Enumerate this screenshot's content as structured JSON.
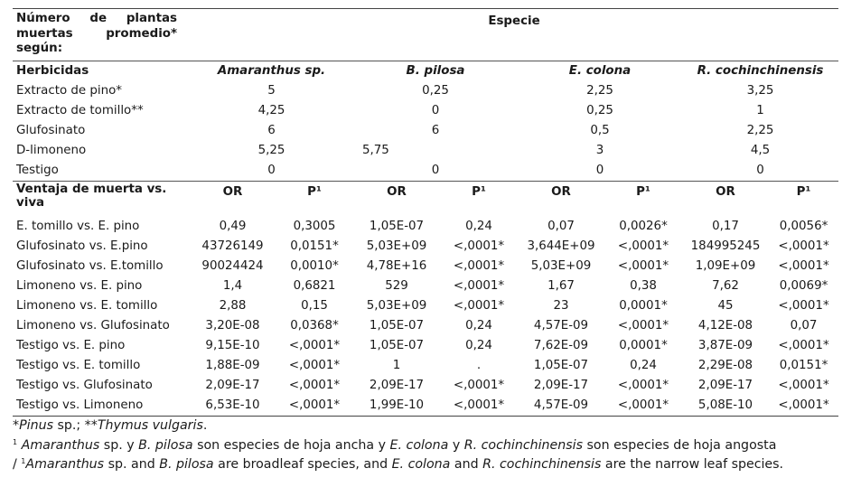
{
  "table": {
    "corner_header": "Número de plantas muertas promedio* según:",
    "species_header": "Especie",
    "herbicides_label": "Herbicidas",
    "species": [
      "Amaranthus sp.",
      "B. pilosa",
      "E. colona",
      "R. cochinchinensis"
    ],
    "herbicide_rows": [
      {
        "label": "Extracto de pino*",
        "values": [
          "5",
          "0,25",
          "2,25",
          "3,25"
        ]
      },
      {
        "label": "Extracto de tomillo**",
        "values": [
          "4,25",
          "0",
          "0,25",
          "1"
        ]
      },
      {
        "label": "Glufosinato",
        "values": [
          "6",
          "6",
          "0,5",
          "2,25"
        ]
      },
      {
        "label": "D-limoneno",
        "values": [
          "5,25",
          "5,75",
          "3",
          "4,5"
        ]
      },
      {
        "label": "Testigo",
        "values": [
          "0",
          "0",
          "0",
          "0"
        ]
      }
    ],
    "advantage_label": "Ventaja de muerta vs. viva",
    "or_label": "OR",
    "p_label": "P¹",
    "comparison_rows": [
      {
        "label": "E. tomillo vs. E. pino",
        "values": [
          "0,49",
          "0,3005",
          "1,05E-07",
          "0,24",
          "0,07",
          "0,0026*",
          "0,17",
          "0,0056*"
        ]
      },
      {
        "label": "Glufosinato vs. E.pino",
        "values": [
          "43726149",
          "0,0151*",
          "5,03E+09",
          "<,0001*",
          "3,644E+09",
          "<,0001*",
          "184995245",
          "<,0001*"
        ]
      },
      {
        "label": "Glufosinato vs. E.tomillo",
        "values": [
          "90024424",
          "0,0010*",
          "4,78E+16",
          "<,0001*",
          "5,03E+09",
          "<,0001*",
          "1,09E+09",
          "<,0001*"
        ]
      },
      {
        "label": "Limoneno vs. E. pino",
        "values": [
          "1,4",
          "0,6821",
          "529",
          "<,0001*",
          "1,67",
          "0,38",
          "7,62",
          "0,0069*"
        ]
      },
      {
        "label": "Limoneno vs. E. tomillo",
        "values": [
          "2,88",
          "0,15",
          "5,03E+09",
          "<,0001*",
          "23",
          "0,0001*",
          "45",
          "<,0001*"
        ]
      },
      {
        "label": "Limoneno vs. Glufosinato",
        "values": [
          "3,20E-08",
          "0,0368*",
          "1,05E-07",
          "0,24",
          "4,57E-09",
          "<,0001*",
          "4,12E-08",
          "0,07"
        ]
      },
      {
        "label": "Testigo vs. E. pino",
        "values": [
          "9,15E-10",
          "<,0001*",
          "1,05E-07",
          "0,24",
          "7,62E-09",
          "0,0001*",
          "3,87E-09",
          "<,0001*"
        ]
      },
      {
        "label": "Testigo vs. E. tomillo",
        "values": [
          "1,88E-09",
          "<,0001*",
          "1",
          ".",
          "1,05E-07",
          "0,24",
          "2,29E-08",
          "0,0151*"
        ]
      },
      {
        "label": "Testigo vs. Glufosinato",
        "values": [
          "2,09E-17",
          "<,0001*",
          "2,09E-17",
          "<,0001*",
          "2,09E-17",
          "<,0001*",
          "2,09E-17",
          "<,0001*"
        ]
      },
      {
        "label": "Testigo vs. Limoneno",
        "values": [
          "6,53E-10",
          "<,0001*",
          "1,99E-10",
          "<,0001*",
          "4,57E-09",
          "<,0001*",
          "5,08E-10",
          "<,0001*"
        ]
      }
    ]
  },
  "notes": {
    "n1_a": "*",
    "n1_b": "Pinus",
    "n1_c": " sp.; **",
    "n1_d": "Thymus vulgaris",
    "n1_e": ".",
    "n2_sup": "1",
    "n2_a": "Amaranthus",
    "n2_b": " sp. y ",
    "n2_c": "B. pilosa",
    "n2_d": " son especies de hoja ancha y ",
    "n2_e": "E. colona",
    "n2_f": " y ",
    "n2_g": "R. cochinchinensis",
    "n2_h": " son especies de hoja angosta",
    "n3_a": "/ ",
    "n3_sup": "1",
    "n3_b": "Amaranthus",
    "n3_c": " sp. and ",
    "n3_d": "B. pilosa",
    "n3_e": " are broadleaf species, and ",
    "n3_f": "E. colona",
    "n3_g": " and ",
    "n3_h": "R. cochinchinensis",
    "n3_i": " are the narrow leaf species."
  }
}
